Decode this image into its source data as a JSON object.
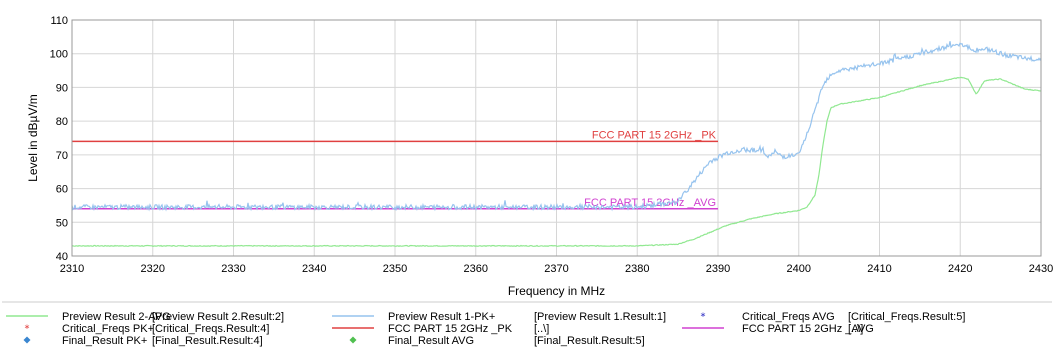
{
  "chart_data": {
    "type": "line",
    "xlabel": "Frequency in MHz",
    "ylabel": "Level in dBµV/m",
    "xlim": [
      2310,
      2430
    ],
    "ylim": [
      40,
      110
    ],
    "xticks": [
      "2310",
      "2320",
      "2330",
      "2340",
      "2350",
      "2360",
      "2370",
      "2380",
      "2390",
      "2400",
      "2410",
      "2420",
      "2430"
    ],
    "yticks": [
      "40",
      "50",
      "60",
      "70",
      "80",
      "90",
      "100",
      "110"
    ],
    "grid": true,
    "legend_position": "bottom",
    "series": [
      {
        "name": "Preview Result 2-AVG",
        "tag": "[Preview Result 2.Result:2]",
        "color": "#90e890",
        "x": [
          2310,
          2330,
          2360,
          2380,
          2385,
          2387,
          2389,
          2391,
          2394,
          2397,
          2400,
          2401,
          2402,
          2402.5,
          2403,
          2403.5,
          2404,
          2405,
          2410,
          2415,
          2419,
          2420,
          2421,
          2421.5,
          2422,
          2422.5,
          2423,
          2425,
          2428,
          2430
        ],
        "values": [
          43,
          43,
          43,
          43,
          43.5,
          45,
          47,
          49,
          51,
          52.5,
          53.5,
          54.5,
          58,
          64,
          73,
          80,
          84,
          85,
          87,
          90.5,
          92.5,
          93,
          92.5,
          90,
          88,
          90,
          92,
          92.5,
          89.5,
          89
        ]
      },
      {
        "name": "Preview Result 1-PK+",
        "tag": "[Preview Result 1.Result:1]",
        "color": "#96c3ee",
        "x": [
          2310,
          2330,
          2360,
          2380,
          2385,
          2387,
          2389,
          2391,
          2393,
          2395,
          2396.5,
          2397,
          2398,
          2400,
          2401,
          2402,
          2403,
          2404,
          2405,
          2410,
          2415,
          2419,
          2420,
          2421,
          2421.5,
          2422,
          2423,
          2425,
          2428,
          2430
        ],
        "values": [
          54.5,
          54.5,
          54.5,
          54.5,
          56,
          62,
          68,
          70.5,
          71.5,
          71.5,
          69.5,
          71,
          69.5,
          70,
          76,
          83,
          91,
          94,
          95,
          97,
          100,
          102.5,
          103,
          102,
          100.5,
          101,
          101.5,
          100,
          98.5,
          98.5
        ]
      }
    ],
    "limits": [
      {
        "name": "FCC PART 15 2GHz _PK",
        "tag": "[..\\]",
        "label": "FCC PART 15 2GHz _PK",
        "color": "#e04040",
        "x": [
          2310,
          2390
        ],
        "value": 74
      },
      {
        "name": "FCC PART 15 2GHz _AVG",
        "tag": "[..\\]",
        "label": "FCC PART 15 2GHz _AVG",
        "color": "#d040d0",
        "x": [
          2310,
          2390
        ],
        "value": 54
      }
    ],
    "legend": [
      [
        {
          "name": "Preview Result 2-AVG",
          "tag": "[Preview Result 2.Result:2]",
          "symbol": "line",
          "color": "#90e890"
        },
        {
          "name": "Critical_Freqs PK+",
          "tag": "[Critical_Freqs.Result:4]",
          "symbol": "star",
          "color": "#e03030"
        },
        {
          "name": "Final_Result PK+",
          "tag": "[Final_Result.Result:4]",
          "symbol": "diamond",
          "color": "#3a86d0"
        }
      ],
      [
        {
          "name": "Preview Result 1-PK+",
          "tag": "[Preview Result 1.Result:1]",
          "symbol": "line",
          "color": "#96c3ee"
        },
        {
          "name": "FCC PART 15 2GHz _PK",
          "tag": "[..\\]",
          "symbol": "line",
          "color": "#e04040"
        },
        {
          "name": "Final_Result AVG",
          "tag": "[Final_Result.Result:5]",
          "symbol": "diamond",
          "color": "#50c050"
        }
      ],
      [
        {
          "name": "Critical_Freqs AVG",
          "tag": "[Critical_Freqs.Result:5]",
          "symbol": "star",
          "color": "#2020c0"
        },
        {
          "name": "FCC PART 15 2GHz _AVG",
          "tag": "[..\\]",
          "symbol": "line",
          "color": "#d040d0"
        }
      ]
    ]
  }
}
